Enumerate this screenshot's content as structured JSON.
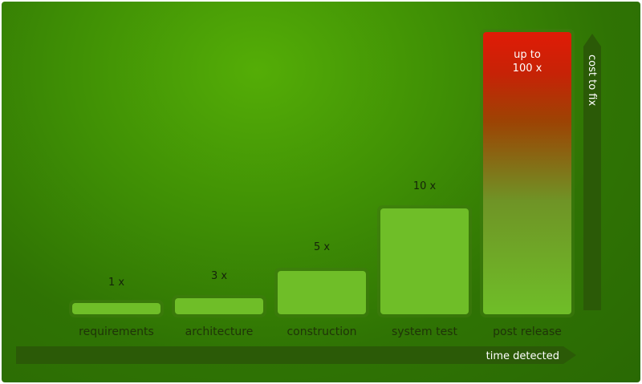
{
  "chart_data": {
    "type": "bar",
    "categories": [
      "requirements",
      "architecture",
      "construction",
      "system test",
      "post release"
    ],
    "values": [
      1,
      3,
      5,
      10,
      100
    ],
    "value_labels": [
      "1 x",
      "3 x",
      "5 x",
      "10 x",
      "up to 100 x"
    ],
    "peak_label_lines": [
      "up to",
      "100 x"
    ],
    "xlabel": "time detected",
    "ylabel": "cost to fix",
    "bar_color": "#6fbe28",
    "bar_border": "#3f7a10",
    "peak_color": "#e01b06",
    "background": "#3f8f05",
    "axis_color": "#2b5a07"
  }
}
